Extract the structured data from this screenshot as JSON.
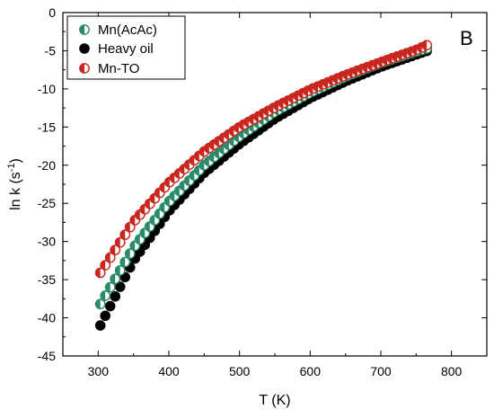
{
  "panel_label": "B",
  "colors": {
    "series1": "#2a8a6a",
    "series2": "#000000",
    "series3": "#c8261e",
    "axis": "#000000"
  },
  "chart_data": {
    "type": "scatter",
    "xlabel": "T (K)",
    "ylabel": "ln k (s",
    "ylabel_sup": "-1",
    "ylabel_close": ")",
    "xlim": [
      250,
      850
    ],
    "ylim": [
      -45,
      0
    ],
    "xticks": [
      300,
      400,
      500,
      600,
      700,
      800
    ],
    "yticks": [
      0,
      -5,
      -10,
      -15,
      -20,
      -25,
      -30,
      -35,
      -40,
      -45
    ],
    "grid": false,
    "legend_position": "top-left",
    "series": [
      {
        "name": "Mn(AcAc)",
        "color": "#2a8a6a",
        "marker": "half-filled circle",
        "x": [
          303,
          350,
          400,
          450,
          500,
          550,
          600,
          650,
          700,
          750,
          769
        ],
        "y": [
          -38.2,
          -30.8,
          -24.8,
          -20.0,
          -16.2,
          -13.0,
          -10.5,
          -8.4,
          -6.6,
          -5.1,
          -4.6
        ]
      },
      {
        "name": "Heavy oil",
        "color": "#000000",
        "marker": "filled circle",
        "x": [
          303,
          350,
          400,
          450,
          500,
          550,
          600,
          650,
          700,
          750,
          769
        ],
        "y": [
          -41.0,
          -32.5,
          -26.0,
          -21.0,
          -17.2,
          -13.9,
          -11.2,
          -9.0,
          -7.1,
          -5.5,
          -4.9
        ]
      },
      {
        "name": "Mn-TO",
        "color": "#c8261e",
        "marker": "half-filled circle",
        "x": [
          303,
          350,
          400,
          450,
          500,
          550,
          600,
          650,
          700,
          750,
          769
        ],
        "y": [
          -34.1,
          -27.4,
          -22.3,
          -18.2,
          -15.0,
          -12.4,
          -10.1,
          -8.2,
          -6.5,
          -4.9,
          -4.1
        ]
      }
    ]
  }
}
